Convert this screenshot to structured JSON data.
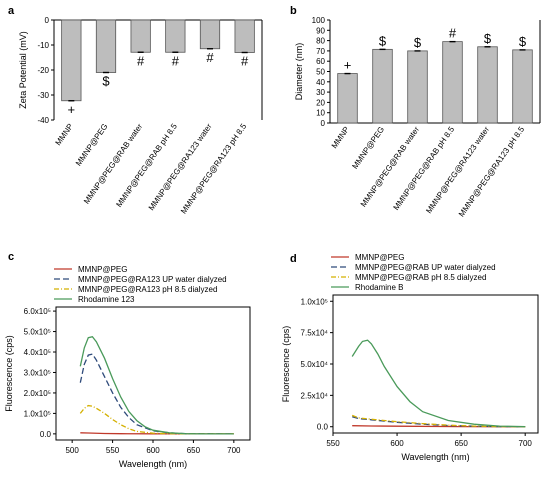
{
  "panels": [
    "a",
    "b",
    "c",
    "d"
  ],
  "chart_data": [
    {
      "panel": "a",
      "type": "bar",
      "ylabel": "Zeta Potential (mV)",
      "ylim": [
        -40,
        0
      ],
      "yticks": [
        "0",
        "-10",
        "-20",
        "-30",
        "-40"
      ],
      "categories": [
        "MMNP",
        "MMNP@PEG",
        "MMNP@PEG@RAB water",
        "MMNP@PEG@RAB pH 8.5",
        "MMNP@PEG@RA123 water",
        "MMNP@PEG@RA123 pH 8.5"
      ],
      "values": [
        -32.3,
        -21,
        -12.9,
        -12.9,
        -11.5,
        -13
      ],
      "markers": [
        "+",
        "$",
        "#",
        "#",
        "#",
        "#"
      ],
      "bar_color": "#bdbdbd"
    },
    {
      "panel": "b",
      "type": "bar",
      "ylabel": "Diameter (nm)",
      "ylim": [
        0,
        100
      ],
      "yticks": [
        "0",
        "10",
        "20",
        "30",
        "40",
        "50",
        "60",
        "70",
        "80",
        "90",
        "100"
      ],
      "categories": [
        "MMNP",
        "MMNP@PEG",
        "MMNP@PEG@RAB water",
        "MMNP@PEG@RAB pH 8.5",
        "MMNP@PEG@RA123 water",
        "MMNP@PEG@RA123 pH 8.5"
      ],
      "values": [
        48,
        71.5,
        70,
        79,
        74,
        71
      ],
      "markers": [
        "+",
        "$",
        "$",
        "#",
        "$",
        "$"
      ],
      "bar_color": "#bdbdbd"
    },
    {
      "panel": "c",
      "type": "line",
      "xlabel": "Wavelength (nm)",
      "ylabel": "Fluorescence (cps)",
      "xlim": [
        480,
        720
      ],
      "ylim": [
        -30000,
        620000
      ],
      "xticks": [
        "500",
        "550",
        "600",
        "650",
        "700"
      ],
      "yticks": [
        "0.0",
        "1.0x10⁵",
        "2.0x10⁵",
        "3.0x10⁵",
        "4.0x10⁵",
        "5.0x10⁵",
        "6.0x10⁵"
      ],
      "series": [
        {
          "name": "MMNP@PEG",
          "color": "#c0392b",
          "dash": "",
          "x": [
            510,
            520,
            540,
            560,
            600,
            650,
            700
          ],
          "y": [
            5000,
            4000,
            2000,
            1000,
            500,
            0,
            0
          ]
        },
        {
          "name": "MMNP@PEG@RA123 UP water dialyzed",
          "color": "#2e4a7a",
          "dash": "6,3",
          "x": [
            510,
            515,
            520,
            525,
            530,
            540,
            550,
            560,
            570,
            580,
            600,
            620,
            640,
            700
          ],
          "y": [
            250000,
            340000,
            385000,
            390000,
            360000,
            280000,
            200000,
            130000,
            80000,
            45000,
            15000,
            5000,
            1000,
            0
          ]
        },
        {
          "name": "MMNP@PEG@RA123 pH 8.5 dialyzed",
          "color": "#d4b000",
          "dash": "5,2,1,2",
          "x": [
            510,
            515,
            520,
            525,
            530,
            540,
            550,
            560,
            570,
            580,
            600,
            620,
            640,
            700
          ],
          "y": [
            100000,
            125000,
            138000,
            135000,
            125000,
            100000,
            70000,
            45000,
            25000,
            12000,
            3000,
            1000,
            0,
            0
          ]
        },
        {
          "name": "Rhodamine 123",
          "color": "#4a9a5a",
          "dash": "",
          "x": [
            510,
            515,
            520,
            525,
            530,
            540,
            550,
            560,
            570,
            580,
            590,
            600,
            620,
            640,
            660,
            700
          ],
          "y": [
            330000,
            420000,
            470000,
            475000,
            450000,
            370000,
            270000,
            180000,
            110000,
            65000,
            35000,
            18000,
            5000,
            1000,
            0,
            0
          ]
        }
      ]
    },
    {
      "panel": "d",
      "type": "line",
      "xlabel": "Wavelength (nm)",
      "ylabel": "Fluorescence (cps)",
      "xlim": [
        550,
        710
      ],
      "ylim": [
        -5000,
        105000
      ],
      "xticks": [
        "550",
        "600",
        "650",
        "700"
      ],
      "yticks": [
        "0.0",
        "2.5x10⁴",
        "5.0x10⁴",
        "7.5x10⁴",
        "1.0x10⁵"
      ],
      "series": [
        {
          "name": "MMNP@PEG",
          "color": "#c0392b",
          "dash": "",
          "x": [
            565,
            580,
            600,
            650,
            700
          ],
          "y": [
            800,
            600,
            400,
            100,
            0
          ]
        },
        {
          "name": "MMNP@PEG@RAB UP water dialyzed",
          "color": "#2e4a7a",
          "dash": "6,3",
          "x": [
            565,
            570,
            580,
            590,
            600,
            620,
            640,
            660,
            680,
            700
          ],
          "y": [
            8000,
            6500,
            5500,
            4500,
            3500,
            2000,
            1000,
            400,
            100,
            0
          ]
        },
        {
          "name": "MMNP@PEG@RAB pH 8.5 dialyzed",
          "color": "#d4b000",
          "dash": "5,2,1,2",
          "x": [
            565,
            570,
            580,
            590,
            600,
            620,
            640,
            660,
            680,
            700
          ],
          "y": [
            9000,
            7000,
            6000,
            5000,
            4000,
            2500,
            1200,
            500,
            100,
            0
          ]
        },
        {
          "name": "Rhodamine B",
          "color": "#4a9a5a",
          "dash": "",
          "x": [
            565,
            570,
            573,
            577,
            580,
            585,
            590,
            600,
            610,
            620,
            640,
            660,
            680,
            700
          ],
          "y": [
            56000,
            64000,
            68000,
            69000,
            66000,
            58000,
            48000,
            32000,
            20000,
            12000,
            5000,
            2000,
            500,
            0
          ]
        }
      ]
    }
  ]
}
